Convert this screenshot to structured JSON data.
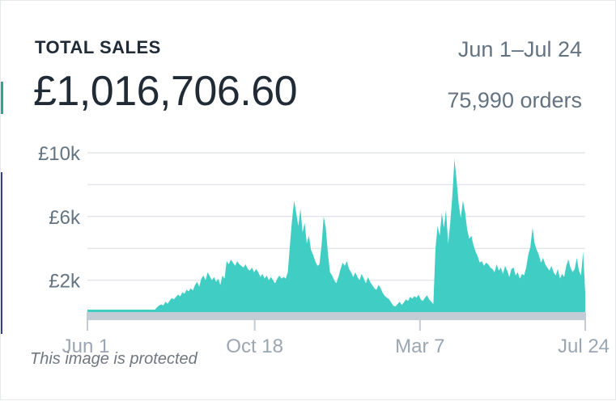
{
  "header": {
    "title": "TOTAL SALES",
    "total": "£1,016,706.60",
    "date_range": "Jun 1–Jul 24",
    "orders": "75,990 orders"
  },
  "watermark": "This image is protected",
  "colors": {
    "area": "#40cec4",
    "baseline": "#c3ccd4",
    "grid": "#e3e7eb",
    "axis_text": "#637381",
    "x_axis_text": "#9aa6b2"
  },
  "chart_data": {
    "type": "area",
    "y_ticks": [
      "£10k",
      "£6k",
      "£2k"
    ],
    "y_tick_values": [
      10000,
      6000,
      2000
    ],
    "ylim": [
      0,
      10000
    ],
    "x_ticks": [
      "Jun 1",
      "Oct 18",
      "Mar 7",
      "Jul 24"
    ],
    "x_tick_positions": [
      0,
      0.336,
      0.668,
      1.0
    ],
    "grid": true,
    "values": [
      0,
      0,
      0,
      0,
      0,
      0,
      0,
      0,
      0,
      0,
      0,
      0,
      0,
      0,
      0,
      0,
      0,
      0,
      0,
      0,
      0,
      0,
      0,
      0,
      0,
      0,
      0,
      0,
      0,
      0,
      0,
      0,
      150,
      300,
      420,
      480,
      420,
      650,
      520,
      720,
      880,
      800,
      950,
      1100,
      980,
      1250,
      1150,
      1400,
      1300,
      1500,
      1350,
      1700,
      1900,
      1600,
      2100,
      2300,
      2000,
      2500,
      2250,
      2000,
      2200,
      1900,
      2100,
      1700,
      2300,
      2100,
      3200,
      3000,
      3300,
      3100,
      2900,
      3200,
      3000,
      2900,
      2800,
      3000,
      2700,
      2600,
      2800,
      2500,
      2700,
      2500,
      2200,
      2400,
      2100,
      2300,
      2000,
      2200,
      2000,
      1800,
      2100,
      2300,
      2100,
      2200,
      2100,
      2500,
      4200,
      5800,
      7000,
      6200,
      5400,
      6500,
      5000,
      5600,
      4300,
      4800,
      3900,
      3600,
      3200,
      2900,
      3000,
      4200,
      6000,
      5300,
      3700,
      2500,
      2300,
      2000,
      1800,
      2200,
      2700,
      3100,
      2900,
      3200,
      2700,
      2500,
      2200,
      2500,
      2200,
      2000,
      2400,
      2100,
      1800,
      2200,
      1900,
      1700,
      1500,
      1400,
      1700,
      1500,
      1200,
      1000,
      900,
      800,
      600,
      400,
      350,
      500,
      650,
      450,
      600,
      800,
      700,
      950,
      850,
      1000,
      900,
      1100,
      800,
      700,
      900,
      1050,
      800,
      650,
      500,
      4000,
      5400,
      4800,
      6200,
      5300,
      6400,
      4300,
      5600,
      7300,
      9600,
      8300,
      6800,
      5900,
      7000,
      6300,
      5200,
      4600,
      4800,
      4200,
      3800,
      3500,
      3100,
      3200,
      2900,
      3100,
      3000,
      2800,
      2700,
      2500,
      3000,
      2600,
      2800,
      2400,
      2900,
      2600,
      2200,
      2700,
      2800,
      2300,
      2500,
      2100,
      2400,
      2300,
      2800,
      3600,
      4100,
      5300,
      4300,
      3900,
      3600,
      3100,
      3400,
      3000,
      2800,
      2600,
      2900,
      2500,
      2300,
      2700,
      2100,
      2400,
      2200,
      2900,
      3300,
      2800,
      2500,
      2700,
      3400,
      2600,
      2300,
      3800,
      1200
    ]
  }
}
